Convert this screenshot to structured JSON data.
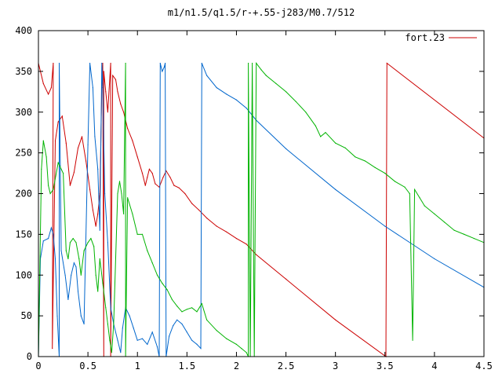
{
  "chart_data": {
    "type": "line",
    "title": "m1/n1.5/q1.5/r-+.55-j283/M0.7/512",
    "xlabel": "",
    "ylabel": "",
    "xlim": [
      0,
      4.5
    ],
    "ylim": [
      0,
      400
    ],
    "x_ticks": [
      0,
      0.5,
      1,
      1.5,
      2,
      2.5,
      3,
      3.5,
      4,
      4.5
    ],
    "x_tick_labels": [
      "0",
      "0.5",
      "1",
      "1.5",
      "2",
      "2.5",
      "3",
      "3.5",
      "4",
      "4.5"
    ],
    "y_ticks": [
      0,
      50,
      100,
      150,
      200,
      250,
      300,
      350,
      400
    ],
    "y_tick_labels": [
      "0",
      "50",
      "100",
      "150",
      "200",
      "250",
      "300",
      "350",
      "400"
    ],
    "grid": false,
    "legend": {
      "position": "top-right",
      "entries": [
        {
          "label": "fort.23",
          "color": "#cc0000"
        }
      ]
    },
    "series": [
      {
        "color": "#cc0000",
        "points": [
          [
            0,
            360
          ],
          [
            0.05,
            335
          ],
          [
            0.1,
            322
          ],
          [
            0.13,
            330
          ],
          [
            0.15,
            360
          ],
          [
            0.14,
            10
          ],
          [
            0.17,
            265
          ],
          [
            0.2,
            288
          ],
          [
            0.24,
            295
          ],
          [
            0.28,
            262
          ],
          [
            0.32,
            210
          ],
          [
            0.36,
            226
          ],
          [
            0.4,
            256
          ],
          [
            0.44,
            270
          ],
          [
            0.48,
            240
          ],
          [
            0.52,
            205
          ],
          [
            0.55,
            180
          ],
          [
            0.58,
            160
          ],
          [
            0.6,
            175
          ],
          [
            0.62,
            200
          ],
          [
            0.63,
            260
          ],
          [
            0.64,
            330
          ],
          [
            0.65,
            360
          ],
          [
            0.66,
            0
          ],
          [
            0.66,
            350
          ],
          [
            0.68,
            325
          ],
          [
            0.7,
            300
          ],
          [
            0.73,
            360
          ],
          [
            0.73,
            0
          ],
          [
            0.75,
            345
          ],
          [
            0.78,
            340
          ],
          [
            0.8,
            325
          ],
          [
            0.83,
            310
          ],
          [
            0.86,
            300
          ],
          [
            0.9,
            280
          ],
          [
            0.95,
            265
          ],
          [
            1.0,
            245
          ],
          [
            1.05,
            225
          ],
          [
            1.08,
            210
          ],
          [
            1.1,
            220
          ],
          [
            1.12,
            230
          ],
          [
            1.15,
            225
          ],
          [
            1.18,
            212
          ],
          [
            1.22,
            208
          ],
          [
            1.26,
            220
          ],
          [
            1.29,
            228
          ],
          [
            1.33,
            220
          ],
          [
            1.37,
            210
          ],
          [
            1.42,
            207
          ],
          [
            1.48,
            200
          ],
          [
            1.55,
            188
          ],
          [
            1.62,
            180
          ],
          [
            1.7,
            170
          ],
          [
            1.8,
            160
          ],
          [
            1.9,
            153
          ],
          [
            2.0,
            145
          ],
          [
            2.1,
            138
          ],
          [
            2.2,
            125
          ],
          [
            2.5,
            95
          ],
          [
            3.0,
            45
          ],
          [
            3.51,
            0
          ],
          [
            3.52,
            360
          ],
          [
            4.5,
            268
          ]
        ]
      },
      {
        "color": "#0066cc",
        "points": [
          [
            0,
            0
          ],
          [
            0.02,
            120
          ],
          [
            0.05,
            142
          ],
          [
            0.1,
            145
          ],
          [
            0.13,
            158
          ],
          [
            0.15,
            150
          ],
          [
            0.17,
            120
          ],
          [
            0.19,
            50
          ],
          [
            0.21,
            0
          ],
          [
            0.21,
            360
          ],
          [
            0.23,
            130
          ],
          [
            0.27,
            100
          ],
          [
            0.3,
            70
          ],
          [
            0.33,
            100
          ],
          [
            0.36,
            115
          ],
          [
            0.38,
            110
          ],
          [
            0.4,
            80
          ],
          [
            0.43,
            50
          ],
          [
            0.46,
            40
          ],
          [
            0.5,
            260
          ],
          [
            0.52,
            360
          ],
          [
            0.55,
            330
          ],
          [
            0.57,
            270
          ],
          [
            0.6,
            230
          ],
          [
            0.62,
            155
          ],
          [
            0.64,
            360
          ],
          [
            0.65,
            330
          ],
          [
            0.67,
            200
          ],
          [
            0.7,
            140
          ],
          [
            0.73,
            60
          ],
          [
            0.76,
            40
          ],
          [
            0.8,
            20
          ],
          [
            0.83,
            5
          ],
          [
            0.85,
            35
          ],
          [
            0.88,
            60
          ],
          [
            0.92,
            50
          ],
          [
            0.96,
            35
          ],
          [
            1.0,
            20
          ],
          [
            1.05,
            22
          ],
          [
            1.1,
            15
          ],
          [
            1.15,
            30
          ],
          [
            1.2,
            12
          ],
          [
            1.22,
            0
          ],
          [
            1.23,
            360
          ],
          [
            1.25,
            350
          ],
          [
            1.27,
            355
          ],
          [
            1.28,
            360
          ],
          [
            1.29,
            0
          ],
          [
            1.32,
            25
          ],
          [
            1.36,
            38
          ],
          [
            1.4,
            45
          ],
          [
            1.45,
            40
          ],
          [
            1.5,
            30
          ],
          [
            1.55,
            20
          ],
          [
            1.6,
            15
          ],
          [
            1.64,
            10
          ],
          [
            1.65,
            360
          ],
          [
            1.7,
            345
          ],
          [
            1.8,
            330
          ],
          [
            1.9,
            322
          ],
          [
            2.0,
            315
          ],
          [
            2.1,
            305
          ],
          [
            2.2,
            290
          ],
          [
            2.5,
            255
          ],
          [
            3.0,
            205
          ],
          [
            3.5,
            160
          ],
          [
            4.0,
            120
          ],
          [
            4.5,
            85
          ]
        ]
      },
      {
        "color": "#00b300",
        "points": [
          [
            0,
            0
          ],
          [
            0.03,
            230
          ],
          [
            0.05,
            265
          ],
          [
            0.08,
            245
          ],
          [
            0.1,
            210
          ],
          [
            0.12,
            200
          ],
          [
            0.15,
            205
          ],
          [
            0.2,
            238
          ],
          [
            0.25,
            225
          ],
          [
            0.28,
            130
          ],
          [
            0.3,
            120
          ],
          [
            0.32,
            140
          ],
          [
            0.35,
            145
          ],
          [
            0.38,
            140
          ],
          [
            0.41,
            120
          ],
          [
            0.43,
            100
          ],
          [
            0.46,
            130
          ],
          [
            0.5,
            140
          ],
          [
            0.53,
            145
          ],
          [
            0.56,
            135
          ],
          [
            0.58,
            100
          ],
          [
            0.6,
            80
          ],
          [
            0.62,
            120
          ],
          [
            0.65,
            90
          ],
          [
            0.68,
            60
          ],
          [
            0.7,
            40
          ],
          [
            0.72,
            20
          ],
          [
            0.74,
            5
          ],
          [
            0.76,
            40
          ],
          [
            0.8,
            200
          ],
          [
            0.82,
            215
          ],
          [
            0.84,
            200
          ],
          [
            0.86,
            175
          ],
          [
            0.88,
            360
          ],
          [
            0.88,
            0
          ],
          [
            0.9,
            195
          ],
          [
            0.95,
            175
          ],
          [
            1.0,
            150
          ],
          [
            1.05,
            150
          ],
          [
            1.1,
            130
          ],
          [
            1.15,
            115
          ],
          [
            1.2,
            100
          ],
          [
            1.25,
            90
          ],
          [
            1.3,
            82
          ],
          [
            1.35,
            70
          ],
          [
            1.4,
            62
          ],
          [
            1.45,
            55
          ],
          [
            1.5,
            58
          ],
          [
            1.55,
            60
          ],
          [
            1.6,
            55
          ],
          [
            1.65,
            65
          ],
          [
            1.7,
            45
          ],
          [
            1.8,
            32
          ],
          [
            1.9,
            22
          ],
          [
            2.0,
            15
          ],
          [
            2.05,
            10
          ],
          [
            2.1,
            5
          ],
          [
            2.12,
            0
          ],
          [
            2.12,
            360
          ],
          [
            2.14,
            0
          ],
          [
            2.16,
            360
          ],
          [
            2.18,
            0
          ],
          [
            2.2,
            360
          ],
          [
            2.25,
            352
          ],
          [
            2.3,
            345
          ],
          [
            2.4,
            335
          ],
          [
            2.5,
            325
          ],
          [
            2.6,
            313
          ],
          [
            2.7,
            300
          ],
          [
            2.8,
            283
          ],
          [
            2.85,
            270
          ],
          [
            2.9,
            275
          ],
          [
            3.0,
            262
          ],
          [
            3.1,
            256
          ],
          [
            3.2,
            245
          ],
          [
            3.3,
            240
          ],
          [
            3.4,
            232
          ],
          [
            3.5,
            225
          ],
          [
            3.6,
            215
          ],
          [
            3.7,
            208
          ],
          [
            3.75,
            200
          ],
          [
            3.78,
            20
          ],
          [
            3.8,
            205
          ],
          [
            3.85,
            195
          ],
          [
            3.9,
            185
          ],
          [
            4.0,
            175
          ],
          [
            4.1,
            165
          ],
          [
            4.2,
            155
          ],
          [
            4.3,
            150
          ],
          [
            4.4,
            145
          ],
          [
            4.5,
            140
          ]
        ]
      }
    ]
  }
}
